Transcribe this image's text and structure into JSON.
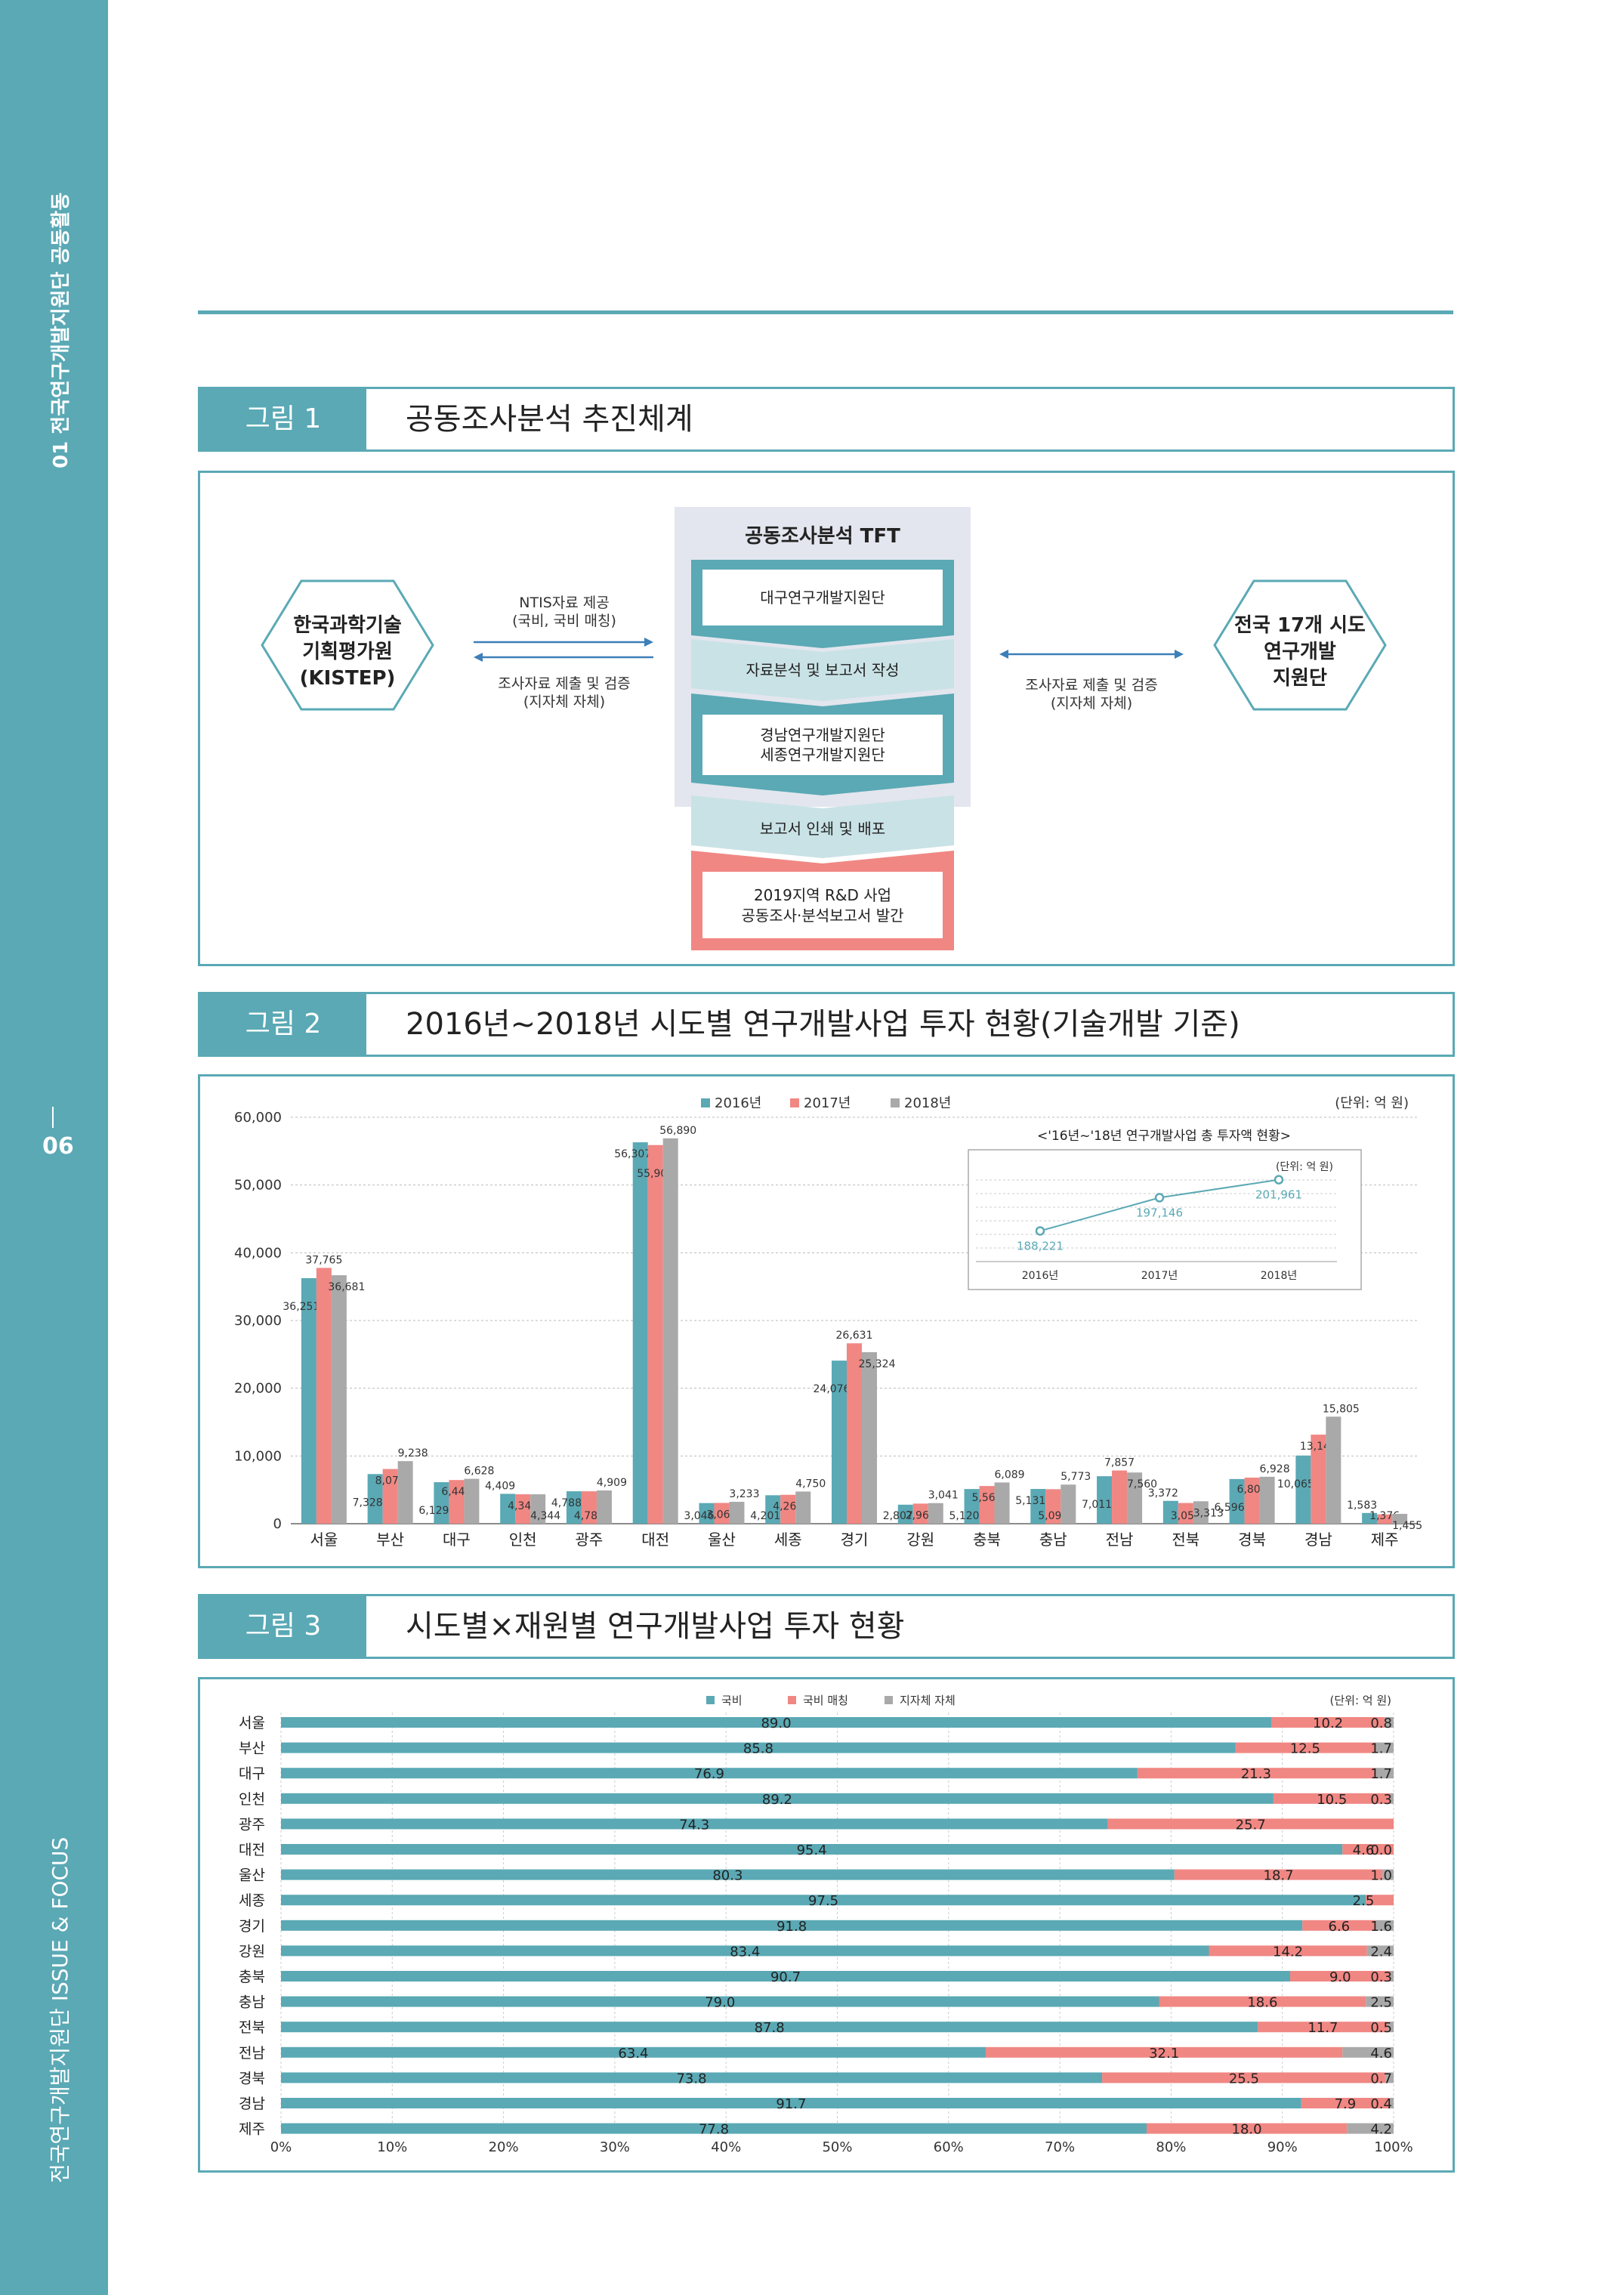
{
  "sidebar": {
    "top_text": "01 전국연구개발지원단 공동활동",
    "page_number": "06",
    "bottom_text": "전국연구개발지원단 ISSUE & FOCUS"
  },
  "figure1": {
    "tag": "그림 1",
    "title": "공동조사분석 추진체계",
    "left_org": [
      "한국과학기술",
      "기획평가원",
      "(KISTEP)"
    ],
    "right_org": [
      "전국 17개 시도",
      "연구개발",
      "지원단"
    ],
    "left_arrow_top": [
      "NTIS자료 제공",
      "(국비, 국비 매칭)"
    ],
    "left_arrow_bottom": [
      "조사자료 제출 및 검증",
      "(지자체 자체)"
    ],
    "right_arrow": [
      "조사자료 제출 및 검증",
      "(지자체 자체)"
    ],
    "tft_title": "공동조사분석 TFT",
    "step1": "대구연구개발지원단",
    "step2": "자료분석 및 보고서 작성",
    "step3": [
      "경남연구개발지원단",
      "세종연구개발지원단"
    ],
    "step4": "보고서 인쇄 및 배포",
    "step5": [
      "2019지역 R&D 사업",
      "공동조사·분석보고서 발간"
    ]
  },
  "figure2": {
    "tag": "그림 2",
    "title": "2016년~2018년 시도별 연구개발사업 투자 현황(기술개발 기준)"
  },
  "figure3": {
    "tag": "그림 3",
    "title": "시도별×재원별 연구개발사업 투자 현황"
  },
  "colors": {
    "teal": "#5aa9b5",
    "coral": "#f08783",
    "gray": "#a9a9a9",
    "light": "#c9e2e6"
  },
  "chart_data": [
    {
      "type": "bar",
      "unit": "(단위: 억 원)",
      "categories": [
        "서울",
        "부산",
        "대구",
        "인천",
        "광주",
        "대전",
        "울산",
        "세종",
        "경기",
        "강원",
        "충북",
        "충남",
        "전남",
        "전북",
        "경북",
        "경남",
        "제주"
      ],
      "series": [
        {
          "name": "2016년",
          "values": [
            36251,
            7328,
            6129,
            4409,
            4788,
            56307,
            3046,
            4201,
            24076,
            2807,
            5120,
            5131,
            7011,
            3372,
            6596,
            10065,
            1583
          ]
        },
        {
          "name": "2017년",
          "values": [
            37765,
            8075,
            6447,
            4344,
            4784,
            55901,
            3068,
            4267,
            26631,
            2969,
            5564,
            5093,
            7857,
            3058,
            6801,
            13147,
            1376
          ]
        },
        {
          "name": "2018년",
          "values": [
            36681,
            9238,
            6628,
            4344,
            4909,
            56890,
            3233,
            4750,
            25324,
            3041,
            6089,
            5773,
            7560,
            3313,
            6928,
            15805,
            1455
          ]
        }
      ],
      "ylim": [
        0,
        60000
      ],
      "yticks": [
        "0",
        "10,000",
        "20,000",
        "30,000",
        "40,000",
        "50,000",
        "60,000"
      ],
      "legend": "top-center",
      "inset": {
        "type": "line",
        "title": "<'16년~'18년 연구개발사업 총 투자액 현황>",
        "unit": "(단위: 억 원)",
        "x": [
          "2016년",
          "2017년",
          "2018년"
        ],
        "values": [
          188221,
          197146,
          201961
        ]
      }
    },
    {
      "type": "bar",
      "orientation": "horizontal-stacked-100",
      "unit": "(단위: 억 원)",
      "categories": [
        "서울",
        "부산",
        "대구",
        "인천",
        "광주",
        "대전",
        "울산",
        "세종",
        "경기",
        "강원",
        "충북",
        "충남",
        "전북",
        "전남",
        "경북",
        "경남",
        "제주"
      ],
      "series": [
        {
          "name": "국비",
          "values": [
            89.0,
            85.8,
            76.9,
            89.2,
            74.3,
            95.4,
            80.3,
            97.5,
            91.8,
            83.4,
            90.7,
            79.0,
            87.8,
            63.4,
            73.8,
            91.7,
            77.8
          ]
        },
        {
          "name": "국비 매칭",
          "values": [
            10.2,
            12.5,
            21.3,
            10.5,
            25.7,
            4.6,
            18.7,
            2.5,
            6.6,
            14.2,
            9.0,
            18.6,
            11.7,
            32.1,
            25.5,
            7.9,
            18.0
          ]
        },
        {
          "name": "지자체 자체",
          "values": [
            "0.8",
            "1.7",
            "1.7",
            "0.3",
            "",
            "0.0",
            "1.0",
            "",
            "1.6",
            "2.4",
            "0.3",
            "2.5",
            "0.5",
            "4.6",
            "0.7",
            "0.4",
            "4.2"
          ]
        }
      ],
      "xticks": [
        "0%",
        "10%",
        "20%",
        "30%",
        "40%",
        "50%",
        "60%",
        "70%",
        "80%",
        "90%",
        "100%"
      ],
      "legend": "top-center"
    }
  ]
}
